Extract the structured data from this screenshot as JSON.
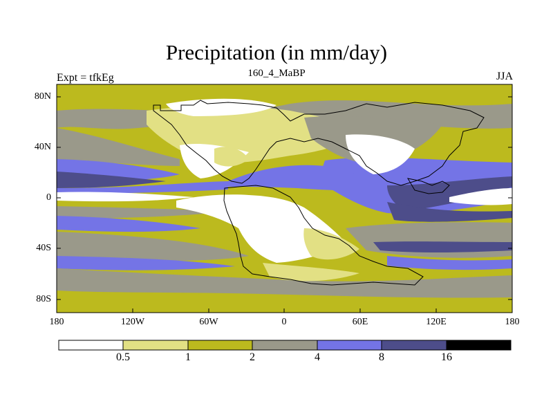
{
  "header": {
    "title": "Precipitation (in mm/day)",
    "left_label": "Expt = tfkEg",
    "center_label": "160_4_MaBP",
    "right_label": "JJA"
  },
  "map": {
    "projection": "equirectangular",
    "lon_range": [
      -180,
      180
    ],
    "lat_range": [
      -90,
      90
    ],
    "lat_ticks": [
      "80N",
      "40N",
      "0",
      "40S",
      "80S"
    ],
    "lon_ticks": [
      "180",
      "120W",
      "60W",
      "0",
      "60E",
      "120E",
      "180"
    ],
    "coastline": "black outline"
  },
  "colorbar": {
    "levels": [
      "0.5",
      "1",
      "2",
      "4",
      "8",
      "16"
    ],
    "colors": [
      "#ffffff",
      "#e2e084",
      "#bcba1e",
      "#9a998a",
      "#7474e6",
      "#4d4d8a",
      "#000000"
    ]
  }
}
